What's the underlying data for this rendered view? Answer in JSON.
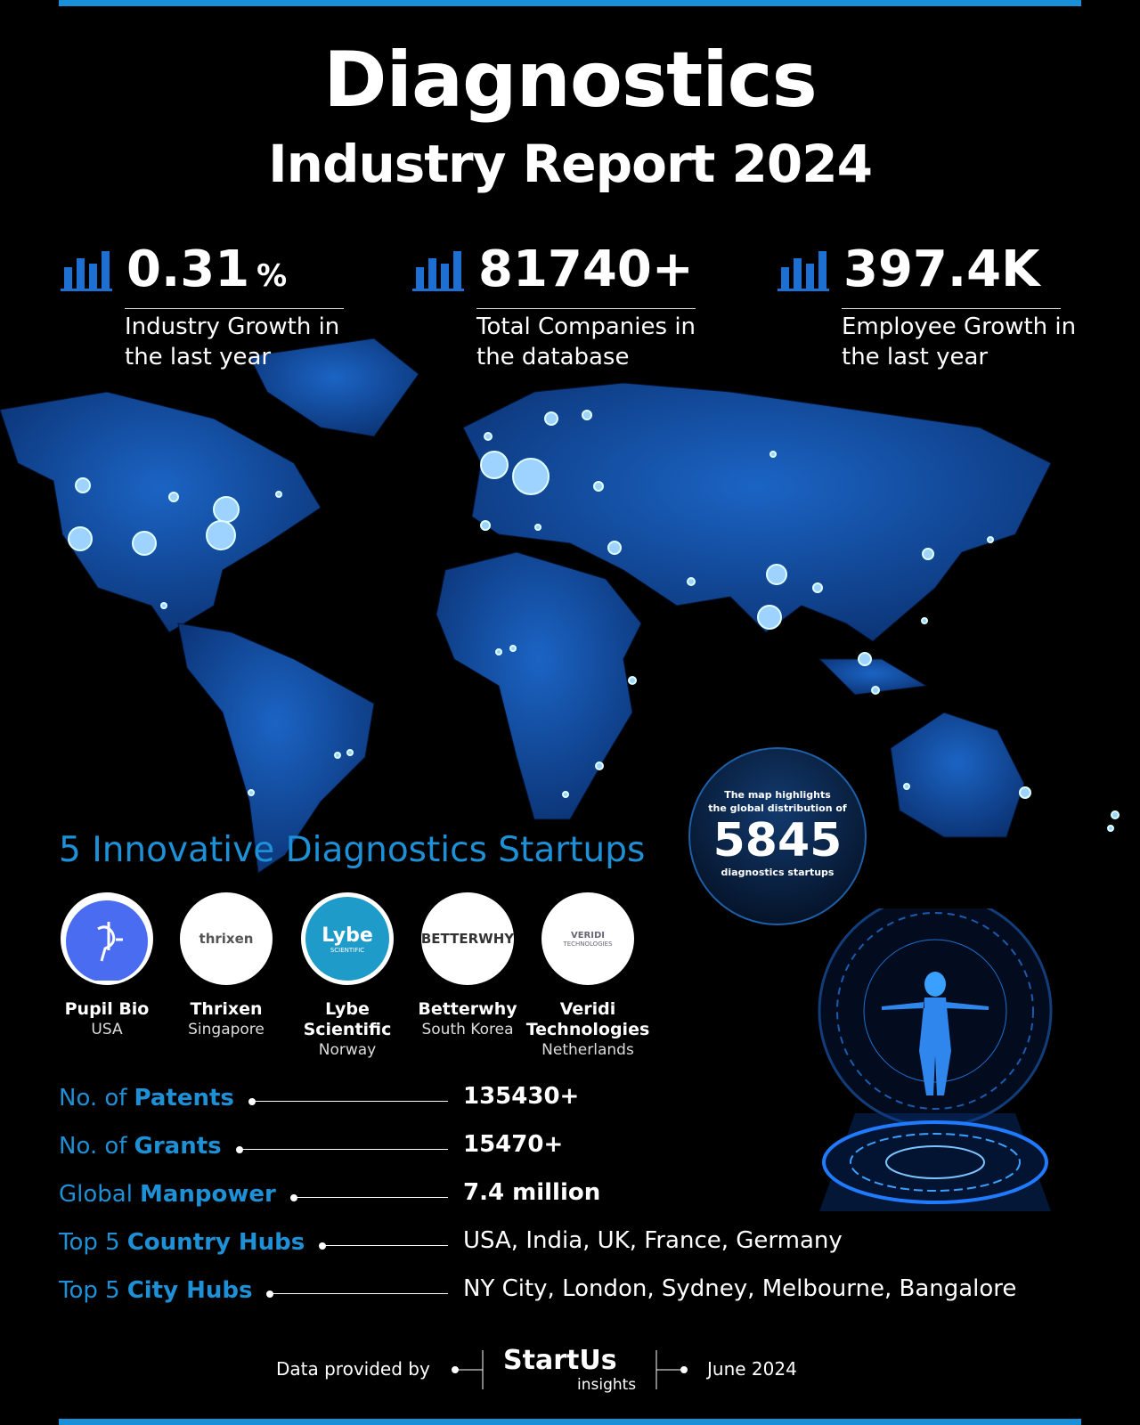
{
  "header": {
    "title": "Diagnostics",
    "subtitle": "Industry Report 2024"
  },
  "stats": [
    {
      "value": "0.31",
      "unit": "%",
      "label_lines": [
        "Industry Growth in",
        "the last year"
      ]
    },
    {
      "value": "81740+",
      "label_lines": [
        "Total Companies in",
        "the database"
      ]
    },
    {
      "value": "397.4K",
      "label_lines": [
        "Employee Growth in",
        "the last year"
      ]
    }
  ],
  "map_note": {
    "lines": [
      "The map highlights",
      "the global distribution of"
    ],
    "count": "5845",
    "caption": "diagnostics startups"
  },
  "startups": {
    "heading": "5 Innovative Diagnostics Startups",
    "items": [
      {
        "name_lines": [
          "Pupil Bio"
        ],
        "country": "USA"
      },
      {
        "name_lines": [
          "Thrixen"
        ],
        "country": "Singapore",
        "logo_text": [
          "thrixen"
        ]
      },
      {
        "name_lines": [
          "Lybe",
          "Scientific"
        ],
        "country": "Norway",
        "logo_text": [
          "Lybe",
          "SCIENTIFIC"
        ]
      },
      {
        "name_lines": [
          "Betterwhy"
        ],
        "country": "South Korea",
        "logo_text": [
          "BETTERWHY"
        ]
      },
      {
        "name_lines": [
          "Veridi",
          "Technologies"
        ],
        "country": "Netherlands",
        "logo_text": [
          "VERIDI",
          "TECHNOLOGIES"
        ]
      }
    ]
  },
  "facts": [
    {
      "prefix": "No. of",
      "emphasis": "Patents",
      "value": "135430+"
    },
    {
      "prefix": "No. of",
      "emphasis": "Grants",
      "value": "15470+"
    },
    {
      "prefix": "Global",
      "emphasis": "Manpower",
      "value": "7.4 million"
    },
    {
      "prefix": "Top 5",
      "emphasis": "Country Hubs",
      "value": "USA, India, UK, France, Germany"
    },
    {
      "prefix": "Top 5",
      "emphasis": "City Hubs",
      "value": "NY City, London, Sydney, Melbourne, Bangalore"
    }
  ],
  "footer": {
    "provided_by": "Data provided by",
    "brand": "StartUs",
    "brand_sub": "insights",
    "date": "June 2024"
  }
}
